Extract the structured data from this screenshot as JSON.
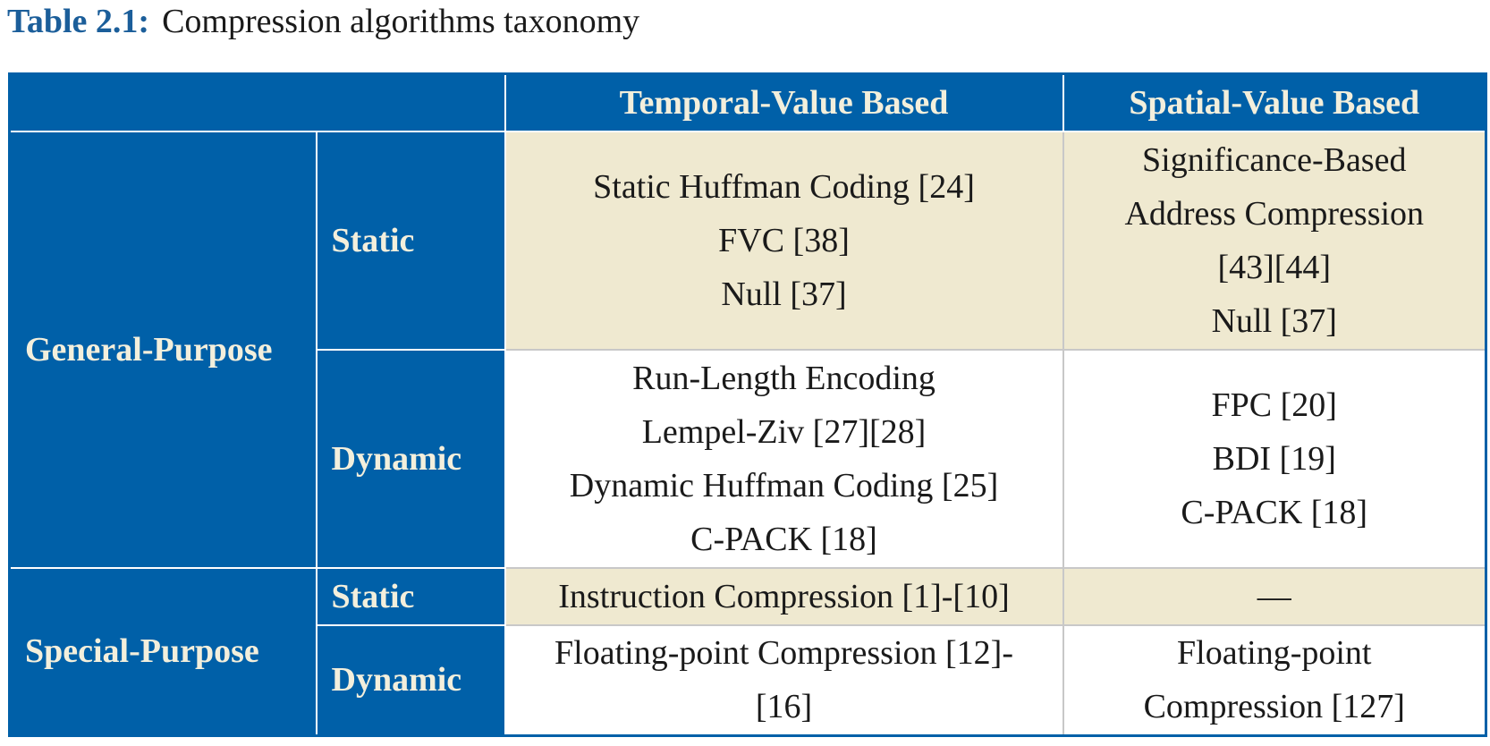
{
  "caption": {
    "label": "Table 2.1:",
    "text": "Compression algorithms taxonomy"
  },
  "table": {
    "header": [
      "Temporal-Value Based",
      "Spatial-Value Based"
    ],
    "groups": [
      {
        "label": "General-Purpose",
        "rows": [
          {
            "label": "Static",
            "cells": [
              [
                "Static Huffman Coding [24]",
                "FVC [38]",
                "Null [37]"
              ],
              [
                "Significance-Based",
                "Address Compression",
                "[43][44]",
                "Null [37]"
              ]
            ]
          },
          {
            "label": "Dynamic",
            "cells": [
              [
                "Run-Length Encoding",
                "Lempel-Ziv [27][28]",
                "Dynamic Huffman Coding [25]",
                "C-PACK [18]"
              ],
              [
                "FPC [20]",
                "BDI [19]",
                "C-PACK [18]"
              ]
            ]
          }
        ]
      },
      {
        "label": "Special-Purpose",
        "rows": [
          {
            "label": "Static",
            "cells": [
              [
                "Instruction Compression [1]-[10]"
              ],
              [
                "—"
              ]
            ]
          },
          {
            "label": "Dynamic",
            "cells": [
              [
                "Floating-point Compression [12]-",
                "[16]"
              ],
              [
                "Floating-point",
                "Compression [127]"
              ]
            ]
          }
        ]
      }
    ]
  }
}
